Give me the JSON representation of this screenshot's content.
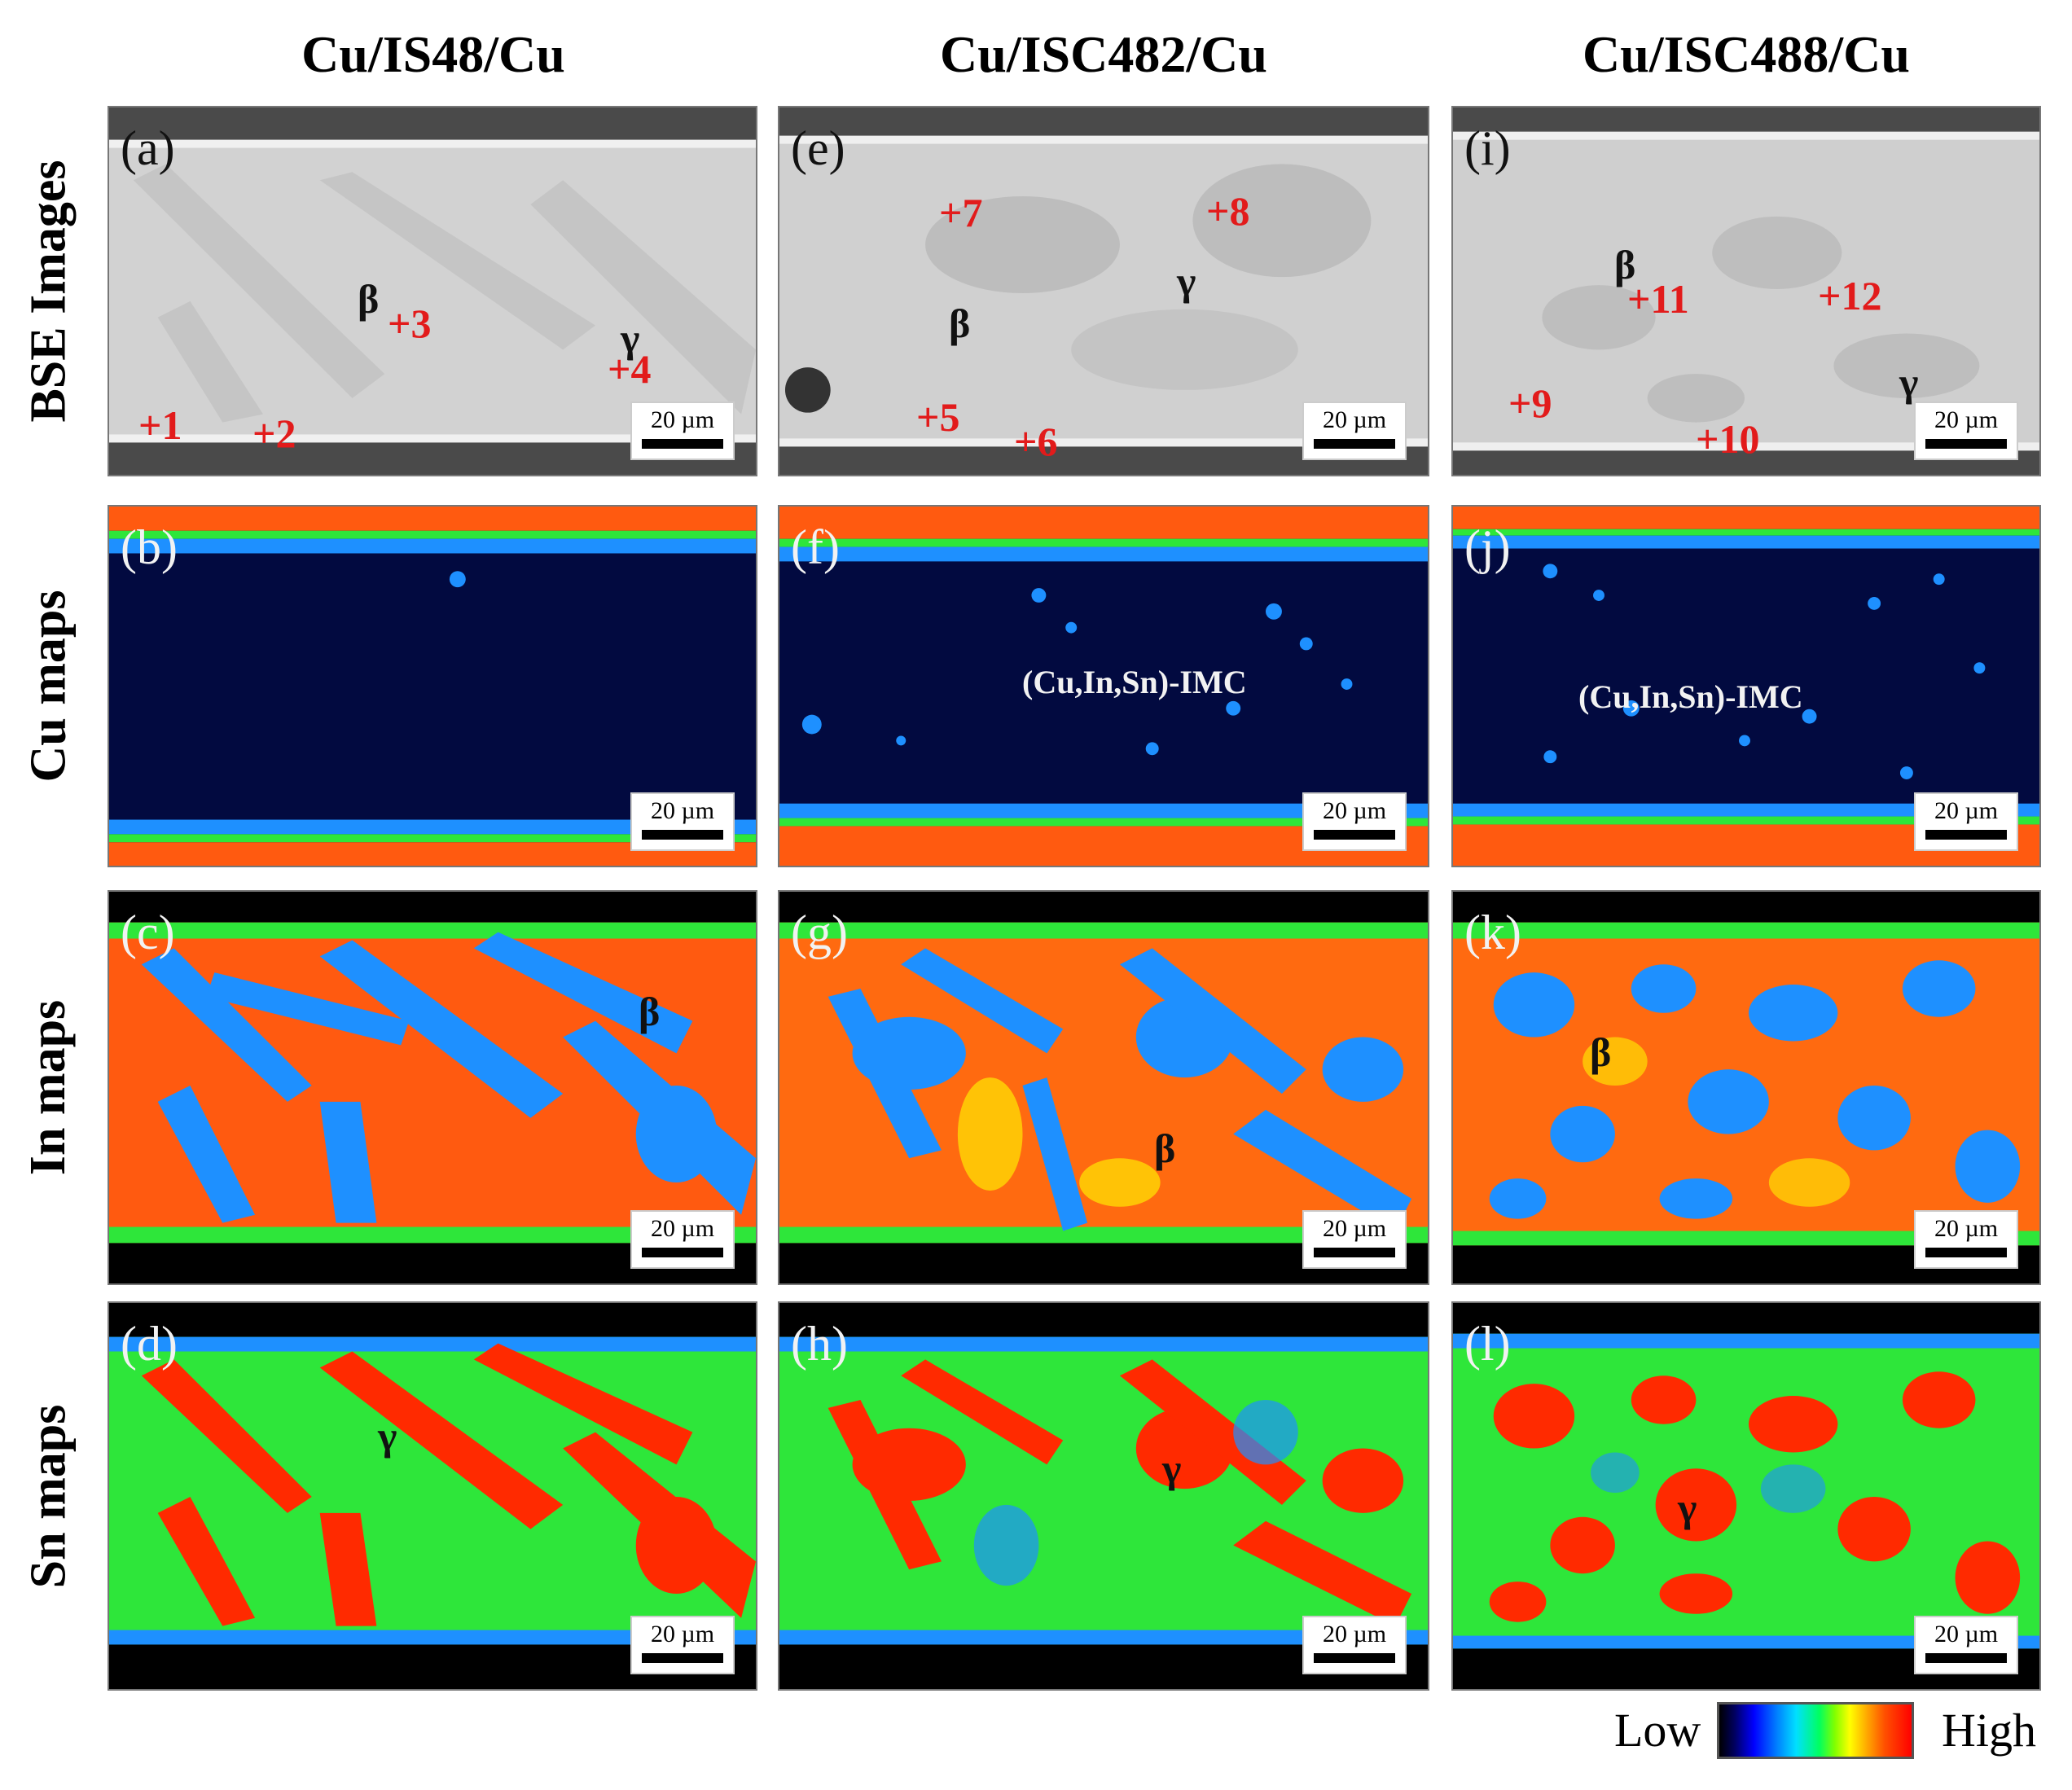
{
  "columns": [
    "Cu/IS48/Cu",
    "Cu/ISC482/Cu",
    "Cu/ISC488/Cu"
  ],
  "rows": [
    "BSE Images",
    "Cu maps",
    "In maps",
    "Sn maps"
  ],
  "panels": {
    "a": "(a)",
    "b": "(b)",
    "c": "(c)",
    "d": "(d)",
    "e": "(e)",
    "f": "(f)",
    "g": "(g)",
    "h": "(h)",
    "i": "(i)",
    "j": "(j)",
    "k": "(k)",
    "l": "(l)"
  },
  "scale_bar": "20 µm",
  "points": {
    "p1": "+1",
    "p2": "+2",
    "p3": "+3",
    "p4": "+4",
    "p5": "+5",
    "p6": "+6",
    "p7": "+7",
    "p8": "+8",
    "p9": "+9",
    "p10": "+10",
    "p11": "+11",
    "p12": "+12"
  },
  "phases": {
    "beta": "β",
    "gamma": "γ"
  },
  "imc_label": "(Cu,In,Sn)-IMC",
  "legend": {
    "low": "Low",
    "high": "High"
  },
  "colors": {
    "bse_background": "#d0d0d0",
    "bse_cu": "#4a4a4a",
    "map_low": "#000000",
    "map_dark": "#020a40",
    "map_blue": "#1e90ff",
    "map_green": "#2ee63a",
    "map_orange": "#ff5a10",
    "map_red": "#ff2a00",
    "point_label": "#e21b1b"
  }
}
